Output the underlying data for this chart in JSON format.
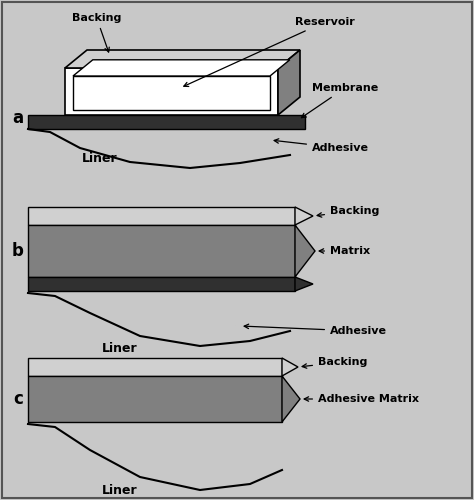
{
  "bg_color": "#c8c8c8",
  "inner_bg": "#ffffff",
  "label_a": "a",
  "label_b": "b",
  "label_c": "c",
  "patch_a": {
    "backing_label": "Backing",
    "reservoir_label": "Reservoir",
    "membrane_label": "Membrane",
    "adhesive_label": "Adhesive",
    "liner_label": "Liner"
  },
  "patch_b": {
    "backing_label": "Backing",
    "matrix_label": "Matrix",
    "adhesive_label": "Adhesive",
    "liner_label": "Liner"
  },
  "patch_c": {
    "backing_label": "Backing",
    "adhesive_matrix_label": "Adhesive Matrix",
    "liner_label": "Liner"
  },
  "colors": {
    "light_gray": "#d0d0d0",
    "medium_gray": "#808080",
    "dark_gray": "#303030",
    "black": "#000000",
    "white": "#ffffff"
  }
}
